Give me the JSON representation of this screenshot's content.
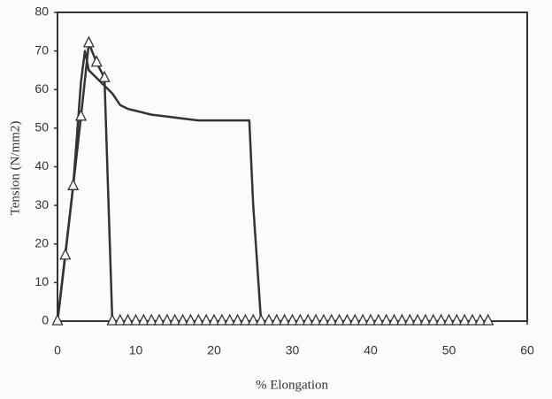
{
  "chart_data": {
    "type": "line",
    "xlabel": "% Elongation",
    "ylabel": "Tension (N/mm2)",
    "xlim": [
      0,
      60
    ],
    "xticks": [
      0,
      10,
      20,
      30,
      40,
      50,
      60
    ],
    "ylim": [
      0,
      80
    ],
    "yticks": [
      0,
      10,
      20,
      30,
      40,
      50,
      60,
      70,
      80
    ],
    "series": [
      {
        "color": "#333333",
        "marker": "none",
        "x": [
          0,
          2,
          3,
          3.5,
          4,
          5,
          6,
          7,
          8,
          9,
          10,
          12,
          14,
          16,
          18,
          20,
          22,
          24,
          24.5,
          25,
          26
        ],
        "values": [
          0,
          35,
          62,
          70,
          65,
          63,
          61,
          59,
          56,
          55,
          54.5,
          53.5,
          53,
          52.5,
          52,
          52,
          52,
          52,
          52,
          30,
          0
        ]
      },
      {
        "color": "#333333",
        "marker": "triangle",
        "x": [
          0,
          1,
          2,
          3,
          4,
          5,
          6,
          7,
          8,
          9,
          10,
          11,
          12,
          13,
          14,
          15,
          16,
          17,
          18,
          19,
          20,
          21,
          22,
          23,
          24,
          25,
          26,
          27,
          28,
          29,
          30,
          31,
          32,
          33,
          34,
          35,
          36,
          37,
          38,
          39,
          40,
          41,
          42,
          43,
          44,
          45,
          46,
          47,
          48,
          49,
          50,
          51,
          52,
          53,
          54,
          55
        ],
        "values": [
          0,
          17,
          35,
          53,
          72,
          67,
          63,
          0,
          0,
          0,
          0,
          0,
          0,
          0,
          0,
          0,
          0,
          0,
          0,
          0,
          0,
          0,
          0,
          0,
          0,
          0,
          0,
          0,
          0,
          0,
          0,
          0,
          0,
          0,
          0,
          0,
          0,
          0,
          0,
          0,
          0,
          0,
          0,
          0,
          0,
          0,
          0,
          0,
          0,
          0,
          0,
          0,
          0,
          0,
          0,
          0
        ]
      }
    ]
  }
}
